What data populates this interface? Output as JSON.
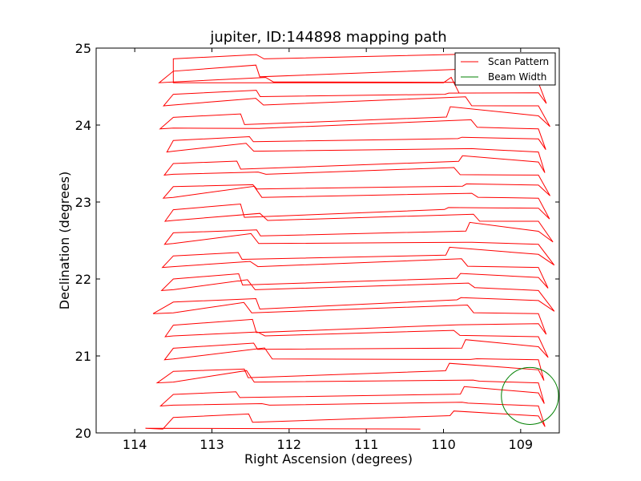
{
  "chart_data": {
    "type": "line",
    "title": "jupiter, ID:144898 mapping path",
    "xlabel": "Right Ascension (degrees)",
    "ylabel": "Declination (degrees)",
    "xlim": [
      114.5,
      108.5
    ],
    "ylim": [
      20,
      25
    ],
    "x_ticks": [
      "114",
      "113",
      "112",
      "111",
      "110",
      "109"
    ],
    "y_ticks": [
      "20",
      "21",
      "22",
      "23",
      "24",
      "25"
    ],
    "legend_position": "top-right",
    "series": [
      {
        "name": "Scan Pattern",
        "color": "#ff0000",
        "line_count": 16,
        "dec_start": 20.2,
        "dec_step": 0.3,
        "ra_left": 113.5,
        "ra_right": 108.75,
        "end_point": [
          110.3,
          20.05
        ]
      },
      {
        "name": "Beam Width",
        "color": "#008000",
        "center": [
          108.88,
          20.48
        ],
        "radius_deg": 0.37
      }
    ]
  }
}
